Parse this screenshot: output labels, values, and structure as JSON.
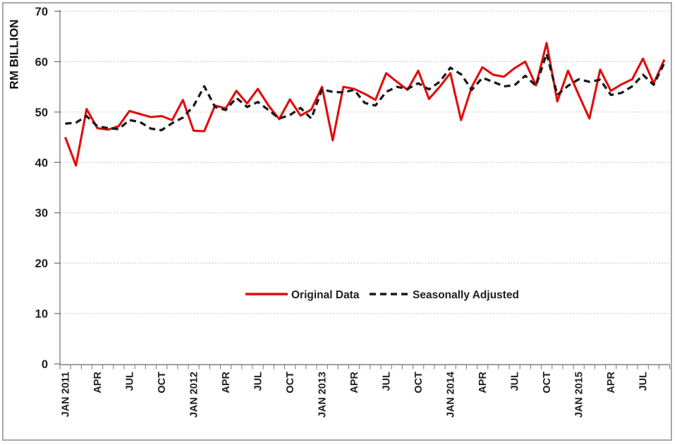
{
  "chart_data": {
    "type": "line",
    "title": "",
    "ylabel": "RM BILLION",
    "xlabel": "",
    "ylim": [
      0,
      70
    ],
    "y_ticks": [
      0,
      10,
      20,
      30,
      40,
      50,
      60,
      70
    ],
    "grid": "horizontal-dotted",
    "legend_position": "inside-lower-center",
    "categories": [
      "JAN 2011",
      "FEB 2011",
      "MAR 2011",
      "APR 2011",
      "MAY 2011",
      "JUN 2011",
      "JUL 2011",
      "AUG 2011",
      "SEP 2011",
      "OCT 2011",
      "NOV 2011",
      "DEC 2011",
      "JAN 2012",
      "FEB 2012",
      "MAR 2012",
      "APR 2012",
      "MAY 2012",
      "JUN 2012",
      "JUL 2012",
      "AUG 2012",
      "SEP 2012",
      "OCT 2012",
      "NOV 2012",
      "DEC 2012",
      "JAN 2013",
      "FEB 2013",
      "MAR 2013",
      "APR 2013",
      "MAY 2013",
      "JUN 2013",
      "JUL 2013",
      "AUG 2013",
      "SEP 2013",
      "OCT 2013",
      "NOV 2013",
      "DEC 2013",
      "JAN 2014",
      "FEB 2014",
      "MAR 2014",
      "APR 2014",
      "MAY 2014",
      "JUN 2014",
      "JUL 2014",
      "AUG 2014",
      "SEP 2014",
      "OCT 2014",
      "NOV 2014",
      "DEC 2014",
      "JAN 2015",
      "FEB 2015",
      "MAR 2015",
      "APR 2015",
      "MAY 2015",
      "JUN 2015",
      "JUL 2015",
      "AUG 2015",
      "SEP 2015"
    ],
    "x_tick_labels": [
      {
        "i": 0,
        "label": "JAN 2011"
      },
      {
        "i": 3,
        "label": "APR"
      },
      {
        "i": 6,
        "label": "JUL"
      },
      {
        "i": 9,
        "label": "OCT"
      },
      {
        "i": 12,
        "label": "JAN 2012"
      },
      {
        "i": 15,
        "label": "APR"
      },
      {
        "i": 18,
        "label": "JUL"
      },
      {
        "i": 21,
        "label": "OCT"
      },
      {
        "i": 24,
        "label": "JAN 2013"
      },
      {
        "i": 27,
        "label": "APR"
      },
      {
        "i": 30,
        "label": "JUL"
      },
      {
        "i": 33,
        "label": "OCT"
      },
      {
        "i": 36,
        "label": "JAN 2014"
      },
      {
        "i": 39,
        "label": "APR"
      },
      {
        "i": 42,
        "label": "JUL"
      },
      {
        "i": 45,
        "label": "OCT"
      },
      {
        "i": 48,
        "label": "JAN 2015"
      },
      {
        "i": 51,
        "label": "APR"
      },
      {
        "i": 54,
        "label": "JUL"
      }
    ],
    "series": [
      {
        "name": "Original Data",
        "style": "solid",
        "color": "#e10c0c",
        "values": [
          45.0,
          39.4,
          50.6,
          46.8,
          46.5,
          47.2,
          50.2,
          49.6,
          49.0,
          49.2,
          48.4,
          52.4,
          46.3,
          46.2,
          51.3,
          50.7,
          54.2,
          51.7,
          54.6,
          51.3,
          48.6,
          52.5,
          49.3,
          50.5,
          55.0,
          44.4,
          55.0,
          54.6,
          53.6,
          52.4,
          57.7,
          56.0,
          54.4,
          58.2,
          52.6,
          55.0,
          57.7,
          48.4,
          55.0,
          58.9,
          57.4,
          57.0,
          58.7,
          60.0,
          55.3,
          63.7,
          52.1,
          58.2,
          53.4,
          48.7,
          58.4,
          54.2,
          55.5,
          56.5,
          60.6,
          55.7,
          60.4
        ]
      },
      {
        "name": "Seasonally Adjusted",
        "style": "dashed",
        "color": "#1a1a1a",
        "values": [
          47.7,
          47.9,
          49.2,
          47.2,
          46.8,
          46.6,
          48.4,
          48.0,
          46.7,
          46.4,
          47.8,
          48.9,
          51.2,
          55.1,
          51.0,
          50.4,
          52.8,
          51.0,
          52.0,
          50.4,
          48.7,
          49.4,
          50.8,
          48.7,
          54.5,
          54.0,
          53.9,
          54.4,
          51.8,
          51.3,
          54.0,
          55.0,
          54.6,
          55.7,
          54.5,
          56.0,
          58.8,
          57.5,
          54.4,
          56.8,
          56.0,
          55.1,
          55.3,
          57.2,
          55.2,
          61.6,
          53.4,
          55.2,
          56.5,
          56.0,
          56.4,
          53.4,
          53.8,
          55.1,
          57.4,
          55.4,
          59.7
        ]
      }
    ],
    "colors": {
      "axis": "#808080",
      "gridline": "#b5b5b5",
      "tick_text": "#1f1f1f",
      "frame_border": "#a8a8a8",
      "background": "#ffffff"
    }
  }
}
